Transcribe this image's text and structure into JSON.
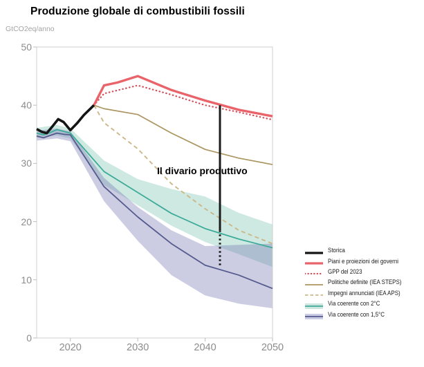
{
  "title": "Produzione globale di combustibili fossili",
  "unit_label": "GtCO2eq/anno",
  "annotation": {
    "text": "Il divario produttivo"
  },
  "colors": {
    "historical": "#141414",
    "govt_plans_red": "#e9646a",
    "gpp_dotted_red": "#cf4f5b",
    "steps_tan": "#ab9560",
    "aps_tan_dashed": "#cbb88a",
    "two_deg_teal": "#3dab99",
    "one_five_purple": "#555a8c",
    "axis_gray": "#8c8c8c",
    "spine_gray": "#cfcfcf"
  },
  "legend": [
    {
      "label": "Storica",
      "marker": "line",
      "color": "#141414",
      "width": 3.2
    },
    {
      "label": "Piani e proiezioni dei governi",
      "marker": "line",
      "color": "#e9646a",
      "width": 3.2
    },
    {
      "label": "GPP del 2023",
      "marker": "dotted",
      "color": "#cf4f5b",
      "width": 2.2
    },
    {
      "label": "Politiche definite (IEA STEPS)",
      "marker": "line",
      "color": "#ab9560",
      "width": 1.7
    },
    {
      "label": "Impegni annunciati (IEA APS)",
      "marker": "dashed",
      "color": "#cbb88a",
      "width": 1.8
    },
    {
      "label": "Via coerente con 2°C",
      "marker": "band",
      "color": "#3dab99",
      "band_color": "#cde7de"
    },
    {
      "label": "Via coerente con 1,5°C",
      "marker": "band",
      "color": "#555a8c",
      "band_color": "#cacce5"
    }
  ],
  "chart_data": {
    "type": "line",
    "title": "Produzione globale di combustibili fossili",
    "xlabel": "",
    "ylabel": "GtCO2eq/anno",
    "x_range": [
      2015,
      2050
    ],
    "y_range": [
      0,
      50
    ],
    "x_ticks": [
      "2020",
      "2030",
      "2040",
      "2050"
    ],
    "x_tick_values": [
      2020,
      2030,
      2040,
      2050
    ],
    "y_ticks": [
      "0",
      "10",
      "20",
      "30",
      "40",
      "50"
    ],
    "y_tick_values": [
      0,
      10,
      20,
      30,
      40,
      50
    ],
    "grid": false,
    "legend_position": "lower-right",
    "bands": [
      {
        "name": "via-coerente-con-2c-band",
        "color": "rgba(102,186,163,0.32)",
        "x": [
          2015,
          2018,
          2020,
          2025,
          2030,
          2035,
          2040,
          2045,
          2050
        ],
        "upper": [
          36.1,
          36.6,
          36.0,
          30.5,
          27.3,
          25.6,
          24.3,
          21.5,
          19.5
        ],
        "lower": [
          34.4,
          34.8,
          34.3,
          26.3,
          22.8,
          19.3,
          16.5,
          14.4,
          12.2
        ]
      },
      {
        "name": "via-coerente-con-1-5c-band",
        "color": "rgba(108,112,176,0.35)",
        "x": [
          2015,
          2018,
          2020,
          2025,
          2030,
          2035,
          2040,
          2045,
          2050
        ],
        "upper": [
          35.6,
          36.0,
          35.5,
          27.5,
          22.5,
          18.5,
          15.8,
          16.0,
          16.2
        ],
        "lower": [
          33.9,
          34.3,
          33.8,
          23.5,
          16.7,
          10.8,
          7.3,
          5.9,
          5.1
        ]
      }
    ],
    "series": [
      {
        "name": "politiche-definite-iea-steps",
        "color": "#ab9560",
        "width": 1.7,
        "dash": null,
        "x": [
          2023.5,
          2025,
          2030,
          2035,
          2040,
          2045,
          2050
        ],
        "values": [
          40,
          39.4,
          38.4,
          35.2,
          32.4,
          30.9,
          29.8
        ]
      },
      {
        "name": "impegni-annunciati-iea-aps",
        "color": "#cbb88a",
        "width": 1.9,
        "dash": "6 4.5",
        "x": [
          2023.5,
          2025,
          2030,
          2035,
          2040,
          2045,
          2050
        ],
        "values": [
          40,
          37.0,
          32.5,
          26.5,
          22.2,
          18.5,
          16.2
        ]
      },
      {
        "name": "gpp-del-2023",
        "color": "#cf4f5b",
        "width": 2.3,
        "dash": "0.4 4.6",
        "linecap": "round",
        "x": [
          2023.5,
          2025,
          2030,
          2035,
          2040,
          2045,
          2050
        ],
        "values": [
          40,
          42.0,
          43.4,
          41.8,
          40.0,
          38.8,
          37.5
        ]
      },
      {
        "name": "piani-e-proiezioni-dei-governi",
        "color": "#e9646a",
        "width": 3.4,
        "dash": null,
        "x": [
          2023.5,
          2025,
          2027,
          2030,
          2035,
          2040,
          2045,
          2050
        ],
        "values": [
          40,
          43.4,
          43.9,
          45.0,
          42.6,
          40.8,
          39.2,
          38.1
        ]
      },
      {
        "name": "via-coerente-con-2c",
        "color": "#3dab99",
        "width": 1.8,
        "dash": null,
        "x": [
          2015,
          2016,
          2017,
          2018,
          2019,
          2020,
          2025,
          2030,
          2035,
          2040,
          2045,
          2050
        ],
        "values": [
          35.2,
          34.9,
          35.3,
          35.8,
          35.5,
          35.2,
          28.6,
          25.0,
          21.4,
          18.8,
          17.0,
          15.5
        ]
      },
      {
        "name": "via-coerente-con-1-5c",
        "color": "#555a8c",
        "width": 1.8,
        "dash": null,
        "x": [
          2015,
          2016,
          2017,
          2018,
          2019,
          2020,
          2025,
          2030,
          2035,
          2040,
          2045,
          2050
        ],
        "values": [
          34.7,
          34.4,
          34.8,
          35.2,
          35.0,
          34.9,
          26.0,
          20.8,
          16.2,
          12.5,
          10.8,
          8.5
        ]
      },
      {
        "name": "storica",
        "color": "#141414",
        "width": 3.6,
        "dash": null,
        "x": [
          2015,
          2015.8,
          2016.5,
          2017.3,
          2018.2,
          2019,
          2020,
          2021,
          2022,
          2023.5
        ],
        "values": [
          35.9,
          35.4,
          35.2,
          36.3,
          37.6,
          37.1,
          35.7,
          36.9,
          38.3,
          40.0
        ]
      }
    ],
    "gap_line": {
      "x": 2042.2,
      "top": 40.0,
      "mid": 18.5,
      "bottom": 12.4,
      "color": "#1c1c1c",
      "width": 3
    }
  }
}
